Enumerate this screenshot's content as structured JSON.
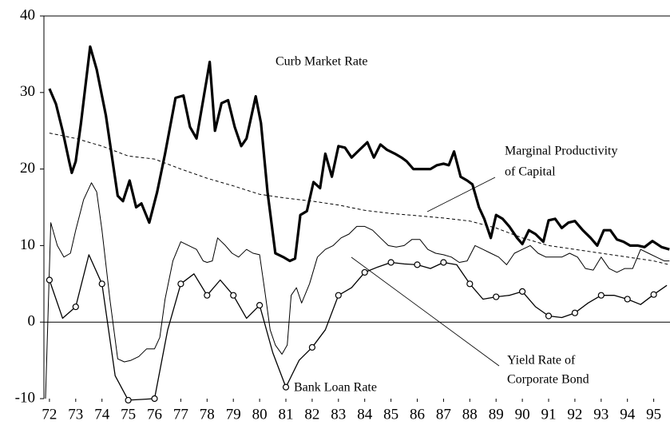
{
  "chart_data": {
    "type": "line",
    "xlim": [
      71.79,
      95.62
    ],
    "xticks": [
      72,
      73,
      74,
      75,
      76,
      77,
      78,
      79,
      80,
      81,
      82,
      83,
      84,
      85,
      86,
      87,
      88,
      89,
      90,
      91,
      92,
      93,
      94,
      95
    ],
    "ylim": [
      -10,
      40
    ],
    "yticks": [
      -10,
      0,
      10,
      20,
      30,
      40
    ],
    "zero_line": true,
    "annotations": [
      "Curb Market Rate",
      "Marginal Productivity",
      "of Capital",
      "Yield Rate of",
      "Corporate Bond",
      "Bank Loan Rate"
    ],
    "series": [
      {
        "name": "Curb Market Rate",
        "color": "#000000",
        "line_width": 3.2,
        "dash": false,
        "x": [
          72.0,
          72.25,
          72.5,
          72.75,
          72.85,
          73.0,
          73.2,
          73.55,
          73.8,
          74.15,
          74.6,
          74.8,
          75.05,
          75.3,
          75.5,
          75.8,
          76.1,
          76.4,
          76.8,
          77.1,
          77.35,
          77.6,
          77.85,
          78.1,
          78.3,
          78.55,
          78.8,
          79.05,
          79.3,
          79.5,
          79.85,
          80.05,
          80.3,
          80.6,
          80.9,
          81.15,
          81.35,
          81.55,
          81.8,
          82.05,
          82.3,
          82.5,
          82.75,
          83.0,
          83.25,
          83.5,
          83.8,
          84.1,
          84.35,
          84.6,
          84.85,
          85.15,
          85.4,
          85.6,
          85.85,
          86.2,
          86.5,
          86.75,
          87.0,
          87.2,
          87.4,
          87.65,
          87.9,
          88.1,
          88.35,
          88.55,
          88.8,
          89.0,
          89.25,
          89.5,
          89.8,
          90.0,
          90.25,
          90.5,
          90.8,
          91.0,
          91.25,
          91.5,
          91.75,
          92.0,
          92.3,
          92.6,
          92.85,
          93.1,
          93.35,
          93.6,
          93.85,
          94.1,
          94.4,
          94.65,
          94.95,
          95.3,
          95.6
        ],
        "values": [
          30.5,
          28.5,
          25,
          21,
          19.5,
          21,
          26,
          36,
          33,
          27,
          16.5,
          15.8,
          18.5,
          15,
          15.5,
          13,
          17,
          22,
          29.3,
          29.6,
          25.5,
          24,
          29,
          34,
          25,
          28.6,
          29,
          25.5,
          23,
          24,
          29.5,
          26,
          17,
          9,
          8.5,
          8,
          8.3,
          14,
          14.5,
          18.3,
          17.5,
          22,
          19,
          23,
          22.8,
          21.5,
          22.5,
          23.5,
          21.5,
          23.2,
          22.5,
          22,
          21.5,
          21,
          20,
          20,
          20,
          20.5,
          20.7,
          20.5,
          22.3,
          19,
          18.5,
          18,
          15,
          13.5,
          11,
          14,
          13.5,
          12.5,
          11,
          10.2,
          12,
          11.5,
          10.5,
          13.3,
          13.5,
          12.3,
          13,
          13.2,
          12,
          11,
          10,
          12,
          12,
          10.8,
          10.5,
          10,
          10,
          9.8,
          10.6,
          9.8,
          9.5
        ]
      },
      {
        "name": "Marginal Productivity of Capital",
        "color": "#000000",
        "line_width": 1,
        "dash": true,
        "x": [
          72,
          73,
          74,
          75,
          76,
          77,
          78,
          79,
          80,
          81,
          82,
          83,
          84,
          85,
          86,
          87,
          88,
          89,
          90,
          91,
          92,
          93,
          94,
          95,
          95.6
        ],
        "values": [
          24.7,
          24,
          23,
          21.7,
          21.3,
          20,
          18.8,
          17.8,
          16.7,
          16.2,
          15.8,
          15.3,
          14.6,
          14.2,
          13.9,
          13.6,
          13.2,
          12.3,
          11,
          10,
          9.5,
          9,
          8.5,
          8,
          7.5
        ]
      },
      {
        "name": "Yield Rate of Corporate Bond",
        "color": "#000000",
        "line_width": 1,
        "dash": false,
        "x": [
          71.85,
          72.05,
          72.3,
          72.55,
          72.8,
          73.0,
          73.3,
          73.6,
          73.8,
          74.0,
          74.3,
          74.6,
          74.85,
          75.1,
          75.4,
          75.7,
          76.0,
          76.2,
          76.4,
          76.7,
          77.0,
          77.3,
          77.6,
          77.85,
          78.0,
          78.2,
          78.4,
          78.7,
          78.95,
          79.2,
          79.5,
          79.75,
          80.0,
          80.2,
          80.4,
          80.6,
          80.85,
          81.05,
          81.2,
          81.4,
          81.6,
          81.9,
          82.2,
          82.5,
          82.8,
          83.1,
          83.4,
          83.7,
          84.0,
          84.3,
          84.6,
          84.9,
          85.2,
          85.5,
          85.8,
          86.1,
          86.4,
          86.7,
          87.0,
          87.3,
          87.6,
          87.9,
          88.2,
          88.5,
          88.8,
          89.1,
          89.4,
          89.7,
          90.0,
          90.3,
          90.6,
          90.9,
          91.2,
          91.5,
          91.8,
          92.1,
          92.4,
          92.7,
          93.0,
          93.3,
          93.6,
          93.9,
          94.2,
          94.5,
          94.8,
          95.1,
          95.4,
          95.6
        ],
        "values": [
          -10,
          13,
          10,
          8.5,
          9,
          12,
          16,
          18.2,
          17,
          12,
          3,
          -4.8,
          -5.2,
          -5,
          -4.5,
          -3.5,
          -3.5,
          -2,
          3,
          8,
          10.5,
          10,
          9.5,
          8,
          7.8,
          8,
          11,
          10,
          9,
          8.5,
          9.5,
          9,
          8.8,
          4,
          -1,
          -3,
          -4.2,
          -3,
          3.5,
          4.5,
          2.5,
          5,
          8.5,
          9.5,
          10,
          11,
          11.5,
          12.5,
          12.5,
          12,
          11,
          10,
          9.8,
          10,
          10.8,
          10.8,
          9.5,
          9,
          8.8,
          8.5,
          7.8,
          8,
          10,
          9.5,
          9,
          8.5,
          7.5,
          9,
          9.5,
          10,
          9,
          8.5,
          8.5,
          8.5,
          9,
          8.5,
          7,
          6.8,
          8.5,
          7,
          6.5,
          7,
          7,
          9.5,
          9,
          8.5,
          8,
          8
        ]
      },
      {
        "name": "Bank Loan Rate",
        "color": "#000000",
        "line_width": 1.3,
        "dash": false,
        "marker": "circle",
        "marker_every": 2,
        "x": [
          72.0,
          72.5,
          73.0,
          73.5,
          74.0,
          74.5,
          75.0,
          75.5,
          76.0,
          76.5,
          77.0,
          77.5,
          78.0,
          78.5,
          79.0,
          79.5,
          80.0,
          80.5,
          81.0,
          81.5,
          82.0,
          82.5,
          83.0,
          83.5,
          84.0,
          84.5,
          85.0,
          85.5,
          86.0,
          86.5,
          87.0,
          87.5,
          88.0,
          88.5,
          89.0,
          89.5,
          90.0,
          90.5,
          91.0,
          91.5,
          92.0,
          92.5,
          93.0,
          93.5,
          94.0,
          94.5,
          95.0,
          95.5
        ],
        "values": [
          5.5,
          0.5,
          2,
          8.8,
          5,
          -7,
          -10.2,
          -10.1,
          -10,
          -1,
          5,
          6.3,
          3.5,
          5.5,
          3.5,
          0.5,
          2.2,
          -4,
          -8.5,
          -5,
          -3.3,
          -1,
          3.5,
          4.5,
          6.5,
          7.2,
          7.8,
          7.6,
          7.5,
          7,
          7.8,
          7.5,
          5,
          3,
          3.3,
          3.5,
          4,
          2,
          0.8,
          0.6,
          1.2,
          2.5,
          3.5,
          3.5,
          3,
          2.3,
          3.6,
          4.8
        ]
      }
    ]
  }
}
